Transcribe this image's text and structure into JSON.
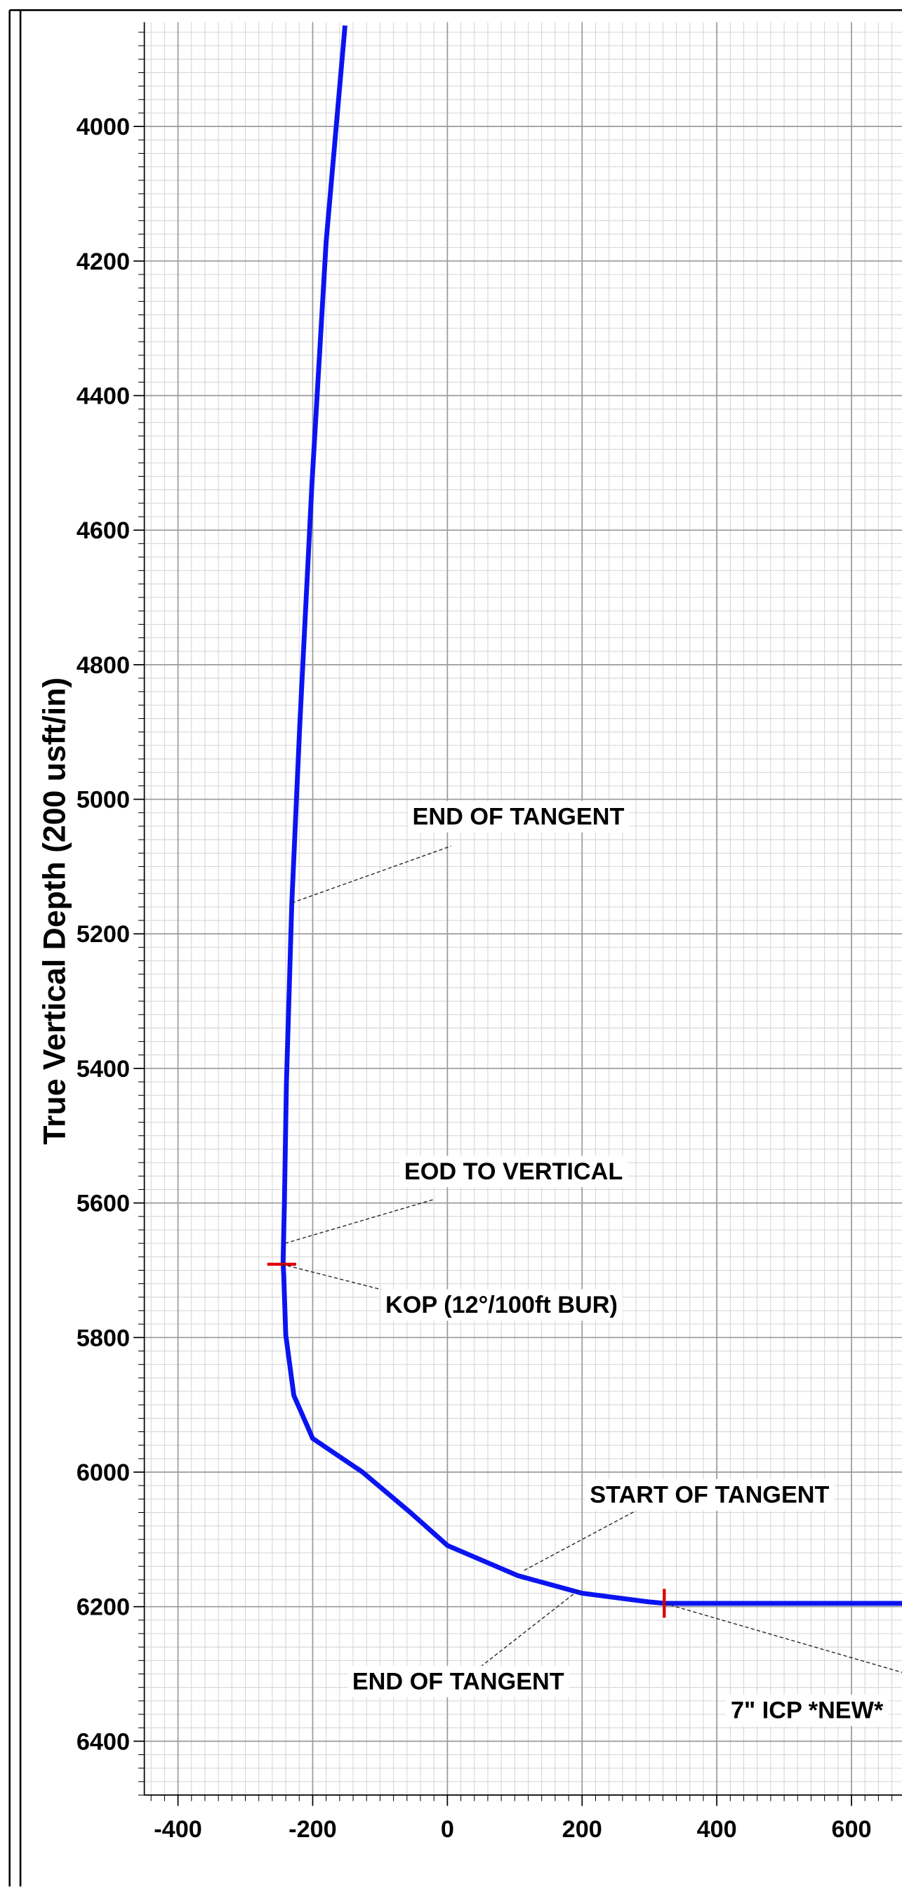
{
  "chart_data": {
    "type": "line",
    "y_label": "True Vertical Depth (200 usft/in)",
    "x": [
      -152,
      -180,
      -201,
      -219,
      -231,
      -239,
      -242,
      -244,
      -243,
      -240,
      -228,
      -200,
      -126,
      -55,
      0,
      105,
      200,
      300,
      322,
      675
    ],
    "values": [
      3850,
      4171,
      4529,
      4886,
      5154,
      5421,
      5600,
      5689,
      5707,
      5796,
      5886,
      5950,
      6000,
      6060,
      6109,
      6154,
      6180,
      6193,
      6195,
      6195
    ],
    "color": "#0a14f0",
    "xlim": [
      -450,
      675
    ],
    "xticks": [
      -400,
      -200,
      0,
      200,
      400,
      600
    ],
    "ylim": [
      3845,
      6480
    ],
    "yticks": [
      4000,
      4200,
      4400,
      4600,
      4800,
      5000,
      5200,
      5400,
      5600,
      5800,
      6000,
      6200,
      6400
    ],
    "y_reversed": true,
    "grid": true,
    "annotations": [
      {
        "text": "END OF TANGENT",
        "x": -231,
        "y": 5154
      },
      {
        "text": "EOD TO VERTICAL",
        "x": -241,
        "y": 5660
      },
      {
        "text": "KOP (12°/100ft BUR)",
        "x": -246,
        "y": 5691
      },
      {
        "text": "START OF TANGENT",
        "x": 114,
        "y": 6146
      },
      {
        "text": "END OF TANGENT",
        "x": 194,
        "y": 6176
      },
      {
        "text": "7\" ICP *NEW*",
        "x": 322,
        "y": 6195
      }
    ],
    "markers": [
      {
        "x": -246,
        "y": 5691,
        "color": "#e00000"
      },
      {
        "x": 322,
        "y": 6195,
        "color": "#e00000"
      }
    ]
  }
}
